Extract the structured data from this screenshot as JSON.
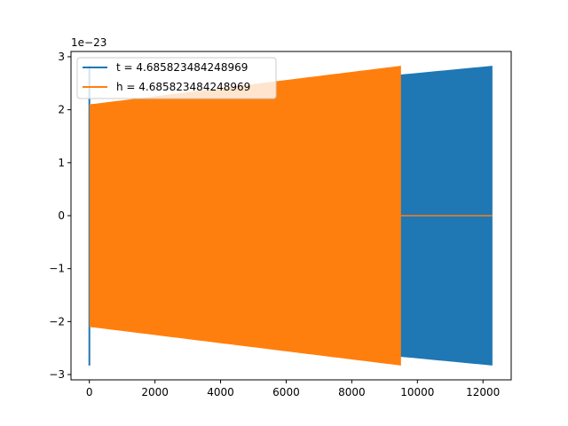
{
  "chart_data": {
    "type": "area",
    "title": "",
    "xlabel": "",
    "ylabel": "",
    "y_offset_label": "1e−23",
    "xlim": [
      -560,
      12860
    ],
    "ylim": [
      -3.1,
      3.1
    ],
    "x_ticks": [
      0,
      2000,
      4000,
      6000,
      8000,
      10000,
      12000
    ],
    "y_ticks": [
      -3,
      -2,
      -1,
      0,
      1,
      2,
      3
    ],
    "y_tick_labels": [
      "−3",
      "−2",
      "−1",
      "0",
      "1",
      "2",
      "3"
    ],
    "grid": false,
    "legend_position": "top-left",
    "series": [
      {
        "name": "t = 4.685823484248969",
        "color": "#1f77b4",
        "x_start": 0,
        "x_end": 12288,
        "envelope_start": 2.1,
        "envelope_end": 2.83,
        "initial_spike": 2.83
      },
      {
        "name": "h = 4.685823484248969",
        "color": "#ff7f0e",
        "x_start": 0,
        "x_end": 9500,
        "envelope_start": 2.1,
        "envelope_end": 2.83,
        "flat_end": 12288,
        "flat_value": 0
      }
    ]
  }
}
